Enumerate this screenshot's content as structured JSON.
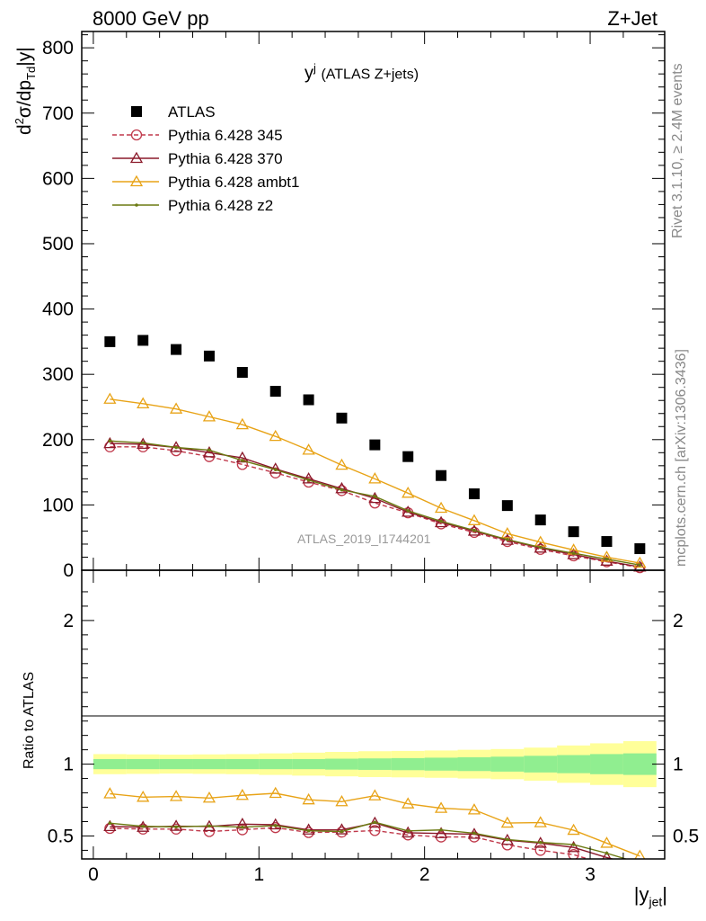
{
  "header": {
    "left_title": "8000 GeV pp",
    "right_title": "Z+Jet"
  },
  "side_labels": {
    "rivet": "Rivet 3.1.10, ≥ 2.4M events",
    "mcplots": "mcplots.cern.ch [arXiv:1306.3436]"
  },
  "chart_data": [
    {
      "type": "scatter",
      "title": "y",
      "title_sup": "j",
      "title_suffix": "(ATLAS Z+jets)",
      "ylabel": "d²σ/dp_Td|y|",
      "ylabel_main": "d",
      "ylabel_sup": "2",
      "ylabel_mid": "σ/dp",
      "ylabel_sub": "Td",
      "ylabel_end": "|y|",
      "watermark": "ATLAS_2019_I1744201",
      "ylim": [
        0,
        825
      ],
      "xlim": [
        -0.07,
        3.45
      ],
      "yticks": [
        0,
        100,
        200,
        300,
        400,
        500,
        600,
        700,
        800
      ],
      "ytick_labels": [
        "0",
        "100",
        "200",
        "300",
        "400",
        "500",
        "600",
        "700",
        "800"
      ],
      "legend_position": "top-left",
      "x": [
        0.1,
        0.3,
        0.5,
        0.7,
        0.9,
        1.1,
        1.3,
        1.5,
        1.7,
        1.9,
        2.1,
        2.3,
        2.5,
        2.7,
        2.9,
        3.1,
        3.3
      ],
      "series": [
        {
          "name": "ATLAS",
          "color": "#000000",
          "marker": "square",
          "line": "none",
          "values": [
            350,
            352,
            338,
            328,
            303,
            274,
            261,
            233,
            192,
            174,
            145,
            117,
            99,
            77,
            59,
            44,
            33
          ]
        },
        {
          "name": "Pythia 6.428 345",
          "color": "#c0394b",
          "marker": "circle",
          "line": "dashed",
          "values": [
            189,
            189,
            183,
            174,
            162,
            149,
            135,
            122,
            103,
            88,
            71,
            58,
            44,
            32,
            22,
            13,
            4
          ]
        },
        {
          "name": "Pythia 6.428 370",
          "color": "#8b1a2b",
          "marker": "triangle",
          "line": "solid",
          "values": [
            194,
            193,
            188,
            180,
            172,
            155,
            140,
            125,
            110,
            89,
            73,
            60,
            46,
            34,
            24,
            14,
            5
          ]
        },
        {
          "name": "Pythia 6.428 ambt1",
          "color": "#e8a317",
          "marker": "triangle",
          "line": "solid",
          "values": [
            262,
            255,
            247,
            235,
            223,
            205,
            184,
            161,
            140,
            118,
            95,
            76,
            56,
            43,
            31,
            20,
            11
          ]
        },
        {
          "name": "Pythia 6.428 z2",
          "color": "#6b7a12",
          "marker": "dot",
          "line": "solid",
          "values": [
            198,
            195,
            188,
            184,
            168,
            154,
            138,
            123,
            113,
            91,
            75,
            61,
            47,
            35,
            26,
            17,
            8
          ]
        }
      ]
    },
    {
      "type": "line",
      "ylabel": "Ratio to ATLAS",
      "xlabel": "|y_jet|",
      "xlabel_main": "|y",
      "xlabel_sub": "jet",
      "xlabel_end": "|",
      "ylim": [
        0.34,
        2.35
      ],
      "xlim": [
        -0.07,
        3.45
      ],
      "xticks": [
        0,
        1,
        2,
        3
      ],
      "xtick_labels": [
        "0",
        "1",
        "2",
        "3"
      ],
      "yticks": [
        0.5,
        1,
        2
      ],
      "ytick_labels": [
        "0.5",
        "1",
        "2"
      ],
      "x": [
        0.1,
        0.3,
        0.5,
        0.7,
        0.9,
        1.1,
        1.3,
        1.5,
        1.7,
        1.9,
        2.1,
        2.3,
        2.5,
        2.7,
        2.9,
        3.1,
        3.3
      ],
      "uncertainty_bands": {
        "edges": [
          0.0,
          0.2,
          0.4,
          0.6,
          0.8,
          1.0,
          1.2,
          1.4,
          1.6,
          1.8,
          2.0,
          2.2,
          2.4,
          2.6,
          2.8,
          3.0,
          3.2,
          3.4
        ],
        "stat_color": "#90ee90",
        "total_color": "#ffff99",
        "stat": [
          0.035,
          0.035,
          0.035,
          0.035,
          0.035,
          0.035,
          0.035,
          0.038,
          0.04,
          0.042,
          0.045,
          0.048,
          0.052,
          0.058,
          0.063,
          0.07,
          0.075
        ],
        "total": [
          0.07,
          0.068,
          0.066,
          0.068,
          0.07,
          0.075,
          0.08,
          0.085,
          0.09,
          0.092,
          0.095,
          0.1,
          0.105,
          0.115,
          0.13,
          0.145,
          0.16
        ]
      },
      "series": [
        {
          "name": "Pythia 6.428 345",
          "color": "#c0394b",
          "values": [
            0.553,
            0.548,
            0.548,
            0.531,
            0.543,
            0.558,
            0.524,
            0.527,
            0.538,
            0.507,
            0.493,
            0.493,
            0.438,
            0.4,
            0.37,
            0.3,
            0.25
          ]
        },
        {
          "name": "Pythia 6.428 370",
          "color": "#8b1a2b",
          "values": [
            0.566,
            0.561,
            0.568,
            0.566,
            0.582,
            0.578,
            0.542,
            0.543,
            0.59,
            0.522,
            0.517,
            0.512,
            0.47,
            0.45,
            0.42,
            0.35,
            0.29
          ]
        },
        {
          "name": "Pythia 6.428 ambt1",
          "color": "#e8a317",
          "values": [
            0.794,
            0.77,
            0.775,
            0.764,
            0.783,
            0.797,
            0.752,
            0.739,
            0.78,
            0.724,
            0.693,
            0.682,
            0.59,
            0.593,
            0.54,
            0.45,
            0.36
          ]
        },
        {
          "name": "Pythia 6.428 z2",
          "color": "#6b7a12",
          "values": [
            0.589,
            0.567,
            0.563,
            0.57,
            0.561,
            0.572,
            0.536,
            0.531,
            0.595,
            0.535,
            0.542,
            0.519,
            0.475,
            0.455,
            0.44,
            0.38,
            0.31
          ]
        }
      ]
    }
  ]
}
